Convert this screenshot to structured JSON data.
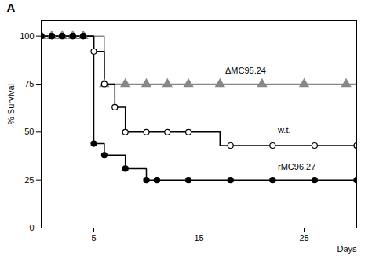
{
  "chart_data": {
    "type": "line",
    "title": "A",
    "xlabel": "Days",
    "ylabel": "% Survival",
    "xlim": [
      0,
      30
    ],
    "ylim": [
      0,
      108
    ],
    "xticks": [
      5,
      15,
      25
    ],
    "yticks": [
      0,
      25,
      50,
      75,
      100
    ],
    "grid": false,
    "series": [
      {
        "name": "ΔMC95.24",
        "color": "#888888",
        "marker": "triangle",
        "line": {
          "x": [
            0,
            6,
            6,
            30
          ],
          "values": [
            100,
            100,
            75,
            75
          ]
        },
        "markers": {
          "x": [
            0,
            1,
            2,
            3,
            4,
            6,
            8,
            10,
            12,
            14,
            17,
            21,
            25,
            29
          ],
          "values": [
            100,
            100,
            100,
            100,
            100,
            75,
            75,
            75,
            75,
            75,
            75,
            75,
            75,
            75
          ]
        }
      },
      {
        "name": "w.t.",
        "color": "#000000",
        "marker": "circle-open",
        "line": {
          "x": [
            0,
            5,
            5,
            6,
            6,
            7,
            7,
            8,
            8,
            10,
            10,
            17,
            17,
            30
          ],
          "values": [
            100,
            100,
            92,
            92,
            75,
            75,
            63,
            63,
            50,
            50,
            50,
            50,
            43,
            43
          ]
        },
        "markers": {
          "x": [
            0,
            1,
            2,
            3,
            4,
            5,
            6,
            7,
            8,
            10,
            12,
            14,
            18,
            22,
            26,
            30
          ],
          "values": [
            100,
            100,
            100,
            100,
            100,
            92,
            75,
            63,
            50,
            50,
            50,
            50,
            43,
            43,
            43,
            43
          ]
        }
      },
      {
        "name": "rMC96.27",
        "color": "#000000",
        "marker": "circle",
        "line": {
          "x": [
            0,
            5,
            5,
            6,
            6,
            8,
            8,
            10,
            10,
            11,
            11,
            30
          ],
          "values": [
            100,
            100,
            44,
            44,
            38,
            38,
            31,
            31,
            25,
            25,
            25,
            25
          ]
        },
        "markers": {
          "x": [
            0,
            1,
            2,
            3,
            4,
            5,
            6,
            8,
            10,
            11,
            14,
            18,
            22,
            26,
            30
          ],
          "values": [
            100,
            100,
            100,
            100,
            100,
            44,
            38,
            31,
            25,
            25,
            25,
            25,
            25,
            25,
            25
          ]
        }
      }
    ],
    "annotations": [
      {
        "x": 17.5,
        "y": 82,
        "text": "ΔMC95.24"
      },
      {
        "x": 22.5,
        "y": 51,
        "text": "w.t."
      },
      {
        "x": 22.5,
        "y": 32,
        "text": "rMC96.27"
      }
    ]
  }
}
